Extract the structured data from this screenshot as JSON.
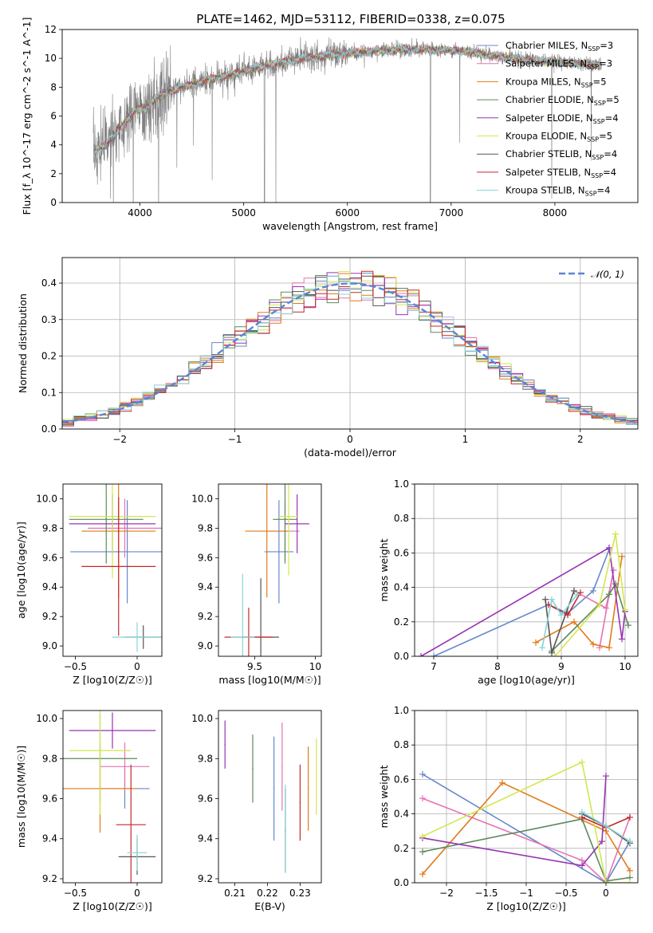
{
  "figure_title": "PLATE=1462, MJD=53112, FIBERID=0338, z=0.075",
  "fits": [
    {
      "name": "Chabrier MILES",
      "nssp": "3",
      "color": "#6688cc"
    },
    {
      "name": "Salpeter MILES",
      "nssp": "3",
      "color": "#e673b3"
    },
    {
      "name": "Kroupa MILES",
      "nssp": "5",
      "color": "#e07b1a"
    },
    {
      "name": "Chabrier ELODIE",
      "nssp": "5",
      "color": "#5a8a5a"
    },
    {
      "name": "Salpeter ELODIE",
      "nssp": "4",
      "color": "#9933b3"
    },
    {
      "name": "Kroupa ELODIE",
      "nssp": "5",
      "color": "#d4e64d"
    },
    {
      "name": "Chabrier STELIB",
      "nssp": "4",
      "color": "#555555"
    },
    {
      "name": "Salpeter STELIB",
      "nssp": "4",
      "color": "#c62828"
    },
    {
      "name": "Kroupa STELIB",
      "nssp": "4",
      "color": "#88d4d4"
    }
  ],
  "chart_data": [
    {
      "id": "spectrum",
      "type": "line",
      "xlabel": "wavelength [Angstrom, rest frame]",
      "ylabel": "Flux [f_λ 10^-17 erg cm^-2 s^-1 A^-1]",
      "xlim": [
        3250,
        8800
      ],
      "ylim": [
        0,
        12
      ],
      "xticks": [
        4000,
        5000,
        6000,
        7000,
        8000
      ],
      "yticks": [
        0,
        2,
        4,
        6,
        8,
        10,
        12
      ],
      "legend_position": "right",
      "data_color": "#808080",
      "continuum": {
        "x": [
          3550,
          3650,
          3750,
          3850,
          3950,
          4050,
          4150,
          4250,
          4350,
          4500,
          4700,
          4900,
          5100,
          5300,
          5500,
          5700,
          5900,
          6100,
          6300,
          6500,
          6700,
          6900,
          7100,
          7300,
          7500,
          7700,
          7900,
          8100,
          8300,
          8450
        ],
        "y": [
          3.5,
          3.9,
          4.6,
          5.6,
          6.3,
          6.6,
          7.2,
          7.6,
          7.9,
          8.2,
          8.6,
          8.9,
          9.3,
          9.6,
          9.9,
          10.1,
          10.3,
          10.4,
          10.5,
          10.6,
          10.6,
          10.6,
          10.5,
          10.3,
          10.1,
          9.9,
          9.8,
          9.7,
          9.6,
          9.5
        ]
      }
    },
    {
      "id": "residuals",
      "type": "histogram",
      "xlabel": "(data-model)/error",
      "ylabel": "Normed distribution",
      "xlim": [
        -2.5,
        2.5
      ],
      "ylim": [
        0,
        0.47
      ],
      "xticks": [
        -2,
        -1,
        0,
        1,
        2
      ],
      "yticks": [
        0.0,
        0.1,
        0.2,
        0.3,
        0.4
      ],
      "bin_width": 0.1,
      "reference_curve": {
        "label": "𝒩(0, 1)",
        "mean": 0,
        "sigma": 1,
        "color": "#5b84d6"
      },
      "legend_position": "top-right"
    },
    {
      "id": "age_vs_Z",
      "type": "errorbar",
      "xlabel": "Z [log10(Z/Z☉)]",
      "ylabel": "age  [log10(age/yr)]",
      "xlim": [
        -0.6,
        0.2
      ],
      "ylim": [
        8.93,
        10.1
      ],
      "xticks": [
        -0.5,
        0.0
      ],
      "yticks": [
        9.0,
        9.2,
        9.4,
        9.6,
        9.8,
        10.0
      ],
      "points": [
        {
          "x": -0.08,
          "xerr": 0.46,
          "y": 9.64,
          "yerr": 0.35
        },
        {
          "x": -0.1,
          "xerr": 0.3,
          "y": 9.8,
          "yerr": 0.2
        },
        {
          "x": -0.15,
          "xerr": 0.3,
          "y": 9.78,
          "yerr": 0.45
        },
        {
          "x": -0.25,
          "xerr": 0.3,
          "y": 9.86,
          "yerr": 0.3
        },
        {
          "x": -0.2,
          "xerr": 0.35,
          "y": 9.83,
          "yerr": 0.2
        },
        {
          "x": -0.2,
          "xerr": 0.35,
          "y": 9.88,
          "yerr": 0.42
        },
        {
          "x": 0.05,
          "xerr": 0.15,
          "y": 9.06,
          "yerr": 0.08
        },
        {
          "x": -0.15,
          "xerr": 0.3,
          "y": 9.54,
          "yerr": 0.47
        },
        {
          "x": 0.0,
          "xerr": 0.2,
          "y": 9.06,
          "yerr": 0.1
        }
      ]
    },
    {
      "id": "age_vs_mass",
      "type": "errorbar",
      "xlabel": "mass [log10(M/M☉)]",
      "ylabel": "",
      "xlim": [
        9.2,
        10.05
      ],
      "ylim": [
        8.93,
        10.1
      ],
      "xticks": [
        9.5,
        10.0
      ],
      "yticks": [
        9.0,
        9.2,
        9.4,
        9.6,
        9.8,
        10.0
      ],
      "points": [
        {
          "x": 9.7,
          "xerr": 0.12,
          "y": 9.64,
          "yerr": 0.35
        },
        {
          "x": 9.75,
          "xerr": 0.12,
          "y": 9.78,
          "yerr": 0.2
        },
        {
          "x": 9.6,
          "xerr": 0.18,
          "y": 9.78,
          "yerr": 0.45
        },
        {
          "x": 9.75,
          "xerr": 0.1,
          "y": 9.86,
          "yerr": 0.3
        },
        {
          "x": 9.85,
          "xerr": 0.1,
          "y": 9.83,
          "yerr": 0.2
        },
        {
          "x": 9.78,
          "xerr": 0.08,
          "y": 9.88,
          "yerr": 0.4
        },
        {
          "x": 9.55,
          "xerr": 0.15,
          "y": 9.06,
          "yerr": 0.4
        },
        {
          "x": 9.45,
          "xerr": 0.2,
          "y": 9.06,
          "yerr": 0.2
        },
        {
          "x": 9.4,
          "xerr": 0.1,
          "y": 9.06,
          "yerr": 0.43
        }
      ]
    },
    {
      "id": "massweight_vs_age",
      "type": "line",
      "xlabel": "age  [log10(age/yr)]",
      "ylabel": "mass weight",
      "xlim": [
        6.7,
        10.2
      ],
      "ylim": [
        0,
        1
      ],
      "xticks": [
        7,
        8,
        9,
        10
      ],
      "yticks": [
        0.0,
        0.2,
        0.4,
        0.6,
        0.8,
        1.0
      ],
      "series": [
        {
          "x": [
            7.0,
            8.8,
            9.1,
            9.5,
            9.75
          ],
          "y": [
            0.0,
            0.3,
            0.25,
            0.38,
            0.62
          ]
        },
        {
          "x": [
            9.2,
            9.7,
            9.82,
            9.6
          ],
          "y": [
            0.38,
            0.28,
            0.5,
            0.05
          ]
        },
        {
          "x": [
            8.6,
            9.2,
            9.5,
            9.75,
            9.95
          ],
          "y": [
            0.08,
            0.2,
            0.07,
            0.05,
            0.58
          ]
        },
        {
          "x": [
            8.85,
            9.75,
            9.85,
            10.05
          ],
          "y": [
            0.03,
            0.36,
            0.42,
            0.18
          ]
        },
        {
          "x": [
            6.8,
            9.75,
            9.95,
            10.0
          ],
          "y": [
            0.0,
            0.63,
            0.1,
            0.26
          ]
        },
        {
          "x": [
            8.9,
            9.6,
            9.85,
            10.0
          ],
          "y": [
            0.0,
            0.3,
            0.71,
            0.27
          ]
        },
        {
          "x": [
            8.75,
            8.85,
            9.2
          ],
          "y": [
            0.33,
            0.02,
            0.38
          ]
        },
        {
          "x": [
            8.8,
            9.1,
            9.3
          ],
          "y": [
            0.3,
            0.24,
            0.37
          ]
        },
        {
          "x": [
            8.7,
            8.85,
            9.0,
            9.25
          ],
          "y": [
            0.05,
            0.33,
            0.24,
            0.36
          ]
        }
      ]
    },
    {
      "id": "mass_vs_Z",
      "type": "errorbar",
      "xlabel": "Z [log10(Z/Z☉)]",
      "ylabel": "mass [log10(M/M☉)]",
      "xlim": [
        -0.6,
        0.2
      ],
      "ylim": [
        9.18,
        10.04
      ],
      "xticks": [
        -0.5,
        0.0
      ],
      "yticks": [
        9.2,
        9.4,
        9.6,
        9.8,
        10.0
      ],
      "points": [
        {
          "x": -0.1,
          "xerr": 0.2,
          "y": 9.65,
          "yerr": 0.1
        },
        {
          "x": -0.1,
          "xerr": 0.2,
          "y": 9.76,
          "yerr": 0.12
        },
        {
          "x": -0.3,
          "xerr": 0.3,
          "y": 9.65,
          "yerr": 0.22
        },
        {
          "x": -0.3,
          "xerr": 0.3,
          "y": 9.8,
          "yerr": 0.22
        },
        {
          "x": -0.2,
          "xerr": 0.35,
          "y": 9.94,
          "yerr": 0.09
        },
        {
          "x": -0.3,
          "xerr": 0.25,
          "y": 9.84,
          "yerr": 0.32
        },
        {
          "x": 0.0,
          "xerr": 0.15,
          "y": 9.31,
          "yerr": 0.09
        },
        {
          "x": -0.05,
          "xerr": 0.12,
          "y": 9.47,
          "yerr": 0.3
        },
        {
          "x": 0.0,
          "xerr": 0.08,
          "y": 9.33,
          "yerr": 0.09
        }
      ]
    },
    {
      "id": "mass_vs_EBV",
      "type": "errorbar",
      "xlabel": "E(B-V)",
      "ylabel": "",
      "xlim": [
        0.205,
        0.2365
      ],
      "ylim": [
        9.18,
        10.04
      ],
      "xticks": [
        0.21,
        0.22,
        0.23
      ],
      "yticks": [
        9.2,
        9.4,
        9.6,
        9.8,
        10.0
      ],
      "points": [
        {
          "x": 0.222,
          "y": 9.65,
          "yerr": 0.26
        },
        {
          "x": 0.2245,
          "y": 9.76,
          "yerr": 0.22
        },
        {
          "x": 0.2325,
          "y": 9.65,
          "yerr": 0.21
        },
        {
          "x": 0.2155,
          "y": 9.75,
          "yerr": 0.17
        },
        {
          "x": 0.207,
          "y": 9.87,
          "yerr": 0.12
        },
        {
          "x": 0.235,
          "y": 9.71,
          "yerr": 0.19
        },
        {
          "x": 0.2255,
          "y": 9.44,
          "yerr": 0.21
        },
        {
          "x": 0.23,
          "y": 9.58,
          "yerr": 0.19
        },
        {
          "x": 0.2255,
          "y": 9.45,
          "yerr": 0.22
        }
      ]
    },
    {
      "id": "massweight_vs_Z",
      "type": "line",
      "xlabel": "Z [log10(Z/Z☉)]",
      "ylabel": "mass weight",
      "xlim": [
        -2.4,
        0.4
      ],
      "ylim": [
        0,
        1
      ],
      "xticks": [
        -2.0,
        -1.5,
        -1.0,
        -0.5,
        0.0
      ],
      "yticks": [
        0.0,
        0.2,
        0.4,
        0.6,
        0.8,
        1.0
      ],
      "series": [
        {
          "x": [
            -2.3,
            0.0,
            0.3
          ],
          "y": [
            0.63,
            0.0,
            0.24
          ]
        },
        {
          "x": [
            -2.3,
            -0.3,
            0.0,
            0.3
          ],
          "y": [
            0.49,
            0.13,
            0.0,
            0.38
          ]
        },
        {
          "x": [
            -2.3,
            -1.3,
            0.0,
            0.3
          ],
          "y": [
            0.05,
            0.58,
            0.3,
            0.07
          ]
        },
        {
          "x": [
            -2.3,
            -0.3,
            0.0,
            0.3
          ],
          "y": [
            0.18,
            0.37,
            0.01,
            0.03
          ]
        },
        {
          "x": [
            -2.3,
            -0.3,
            -0.05,
            0.0
          ],
          "y": [
            0.26,
            0.1,
            0.24,
            0.62
          ]
        },
        {
          "x": [
            -2.3,
            -0.3,
            0.0,
            0.3
          ],
          "y": [
            0.27,
            0.7,
            0.0,
            0.0
          ]
        },
        {
          "x": [
            -0.3,
            0.0,
            0.3
          ],
          "y": [
            0.4,
            0.33,
            0.23
          ]
        },
        {
          "x": [
            -0.3,
            0.0,
            0.3
          ],
          "y": [
            0.38,
            0.32,
            0.38
          ]
        },
        {
          "x": [
            -0.3,
            0.0,
            0.3
          ],
          "y": [
            0.41,
            0.33,
            0.24
          ]
        }
      ]
    }
  ]
}
